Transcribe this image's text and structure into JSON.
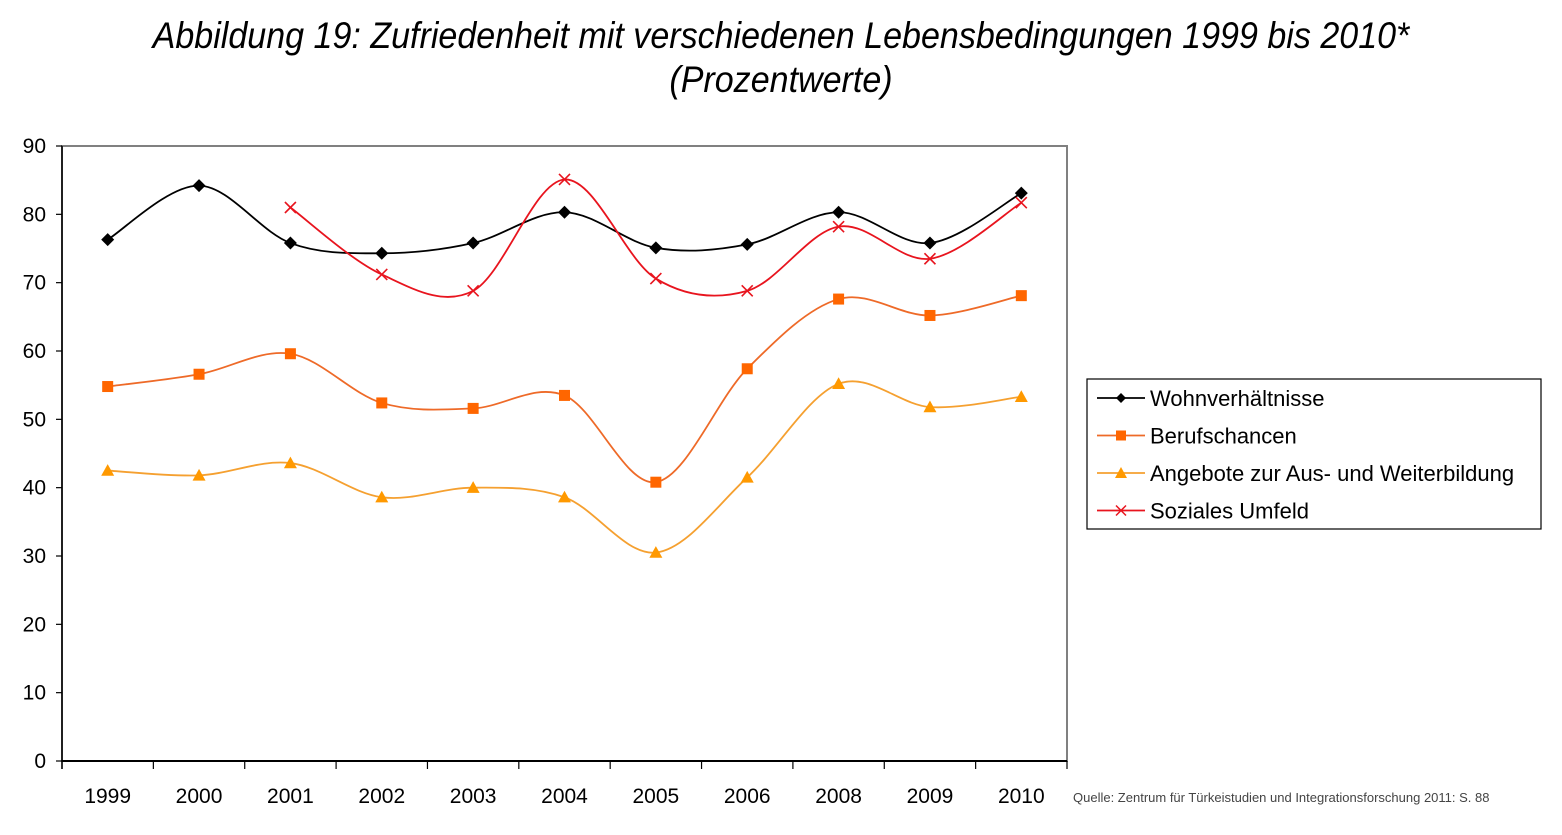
{
  "chart_data": {
    "type": "line",
    "title": "Abbildung 19: Zufriedenheit mit verschiedenen Lebensbedingungen 1999 bis 2010*",
    "subtitle": "(Prozentwerte)",
    "xlabel": "",
    "ylabel": "",
    "categories": [
      "1999",
      "2000",
      "2001",
      "2002",
      "2003",
      "2004",
      "2005",
      "2006",
      "2008",
      "2009",
      "2010"
    ],
    "ylim": [
      0,
      90
    ],
    "yticks": [
      0,
      10,
      20,
      30,
      40,
      50,
      60,
      70,
      80,
      90
    ],
    "grid": true,
    "legend_position": "right",
    "smooth": true,
    "series": [
      {
        "name": "Wohnverhältnisse",
        "color": "#000000",
        "marker": "diamond",
        "values": [
          76.3,
          84.2,
          75.8,
          74.3,
          75.8,
          80.3,
          75.1,
          75.6,
          80.3,
          75.8,
          83.1
        ]
      },
      {
        "name": "Berufschancen",
        "color": "#FF6600",
        "line_color": "#EE6A28",
        "marker": "square",
        "values": [
          54.8,
          56.6,
          59.6,
          52.4,
          51.6,
          53.5,
          40.8,
          57.4,
          67.6,
          65.2,
          68.1
        ]
      },
      {
        "name": "Angebote zur Aus- und Weiterbildung",
        "color": "#FF9900",
        "line_color": "#F5A030",
        "marker": "triangle",
        "values": [
          42.5,
          41.8,
          43.6,
          38.6,
          40.0,
          38.6,
          30.5,
          41.5,
          55.2,
          51.8,
          53.3
        ]
      },
      {
        "name": "Soziales Umfeld",
        "color": "#E8141E",
        "marker": "x",
        "values": [
          null,
          null,
          81.0,
          71.2,
          68.8,
          85.1,
          70.6,
          68.8,
          78.2,
          73.5,
          81.7
        ]
      }
    ],
    "source": "Quelle: Zentrum für Türkeistudien und Integrationsforschung 2011: S. 88"
  }
}
